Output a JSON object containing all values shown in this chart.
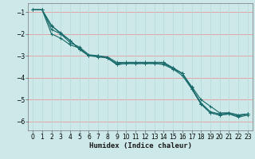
{
  "xlabel": "Humidex (Indice chaleur)",
  "ylabel": "",
  "background_color": "#cce8e8",
  "grid_color_h": "#e89898",
  "grid_color_v": "#b8d8d8",
  "line_color": "#1a6b6b",
  "x_values": [
    0,
    1,
    2,
    3,
    4,
    5,
    6,
    7,
    8,
    9,
    10,
    11,
    12,
    13,
    14,
    15,
    16,
    17,
    18,
    19,
    20,
    21,
    22,
    23
  ],
  "series": [
    [
      -0.9,
      -0.9,
      -1.6,
      -2.0,
      -2.3,
      -2.7,
      -3.0,
      -3.0,
      -3.1,
      -3.4,
      -3.35,
      -3.35,
      -3.35,
      -3.35,
      -3.35,
      -3.6,
      -3.8,
      -4.5,
      -5.2,
      -5.6,
      -5.7,
      -5.65,
      -5.8,
      -5.7
    ],
    [
      -0.9,
      -0.9,
      -1.8,
      -2.0,
      -2.4,
      -2.6,
      -2.95,
      -3.0,
      -3.05,
      -3.3,
      -3.3,
      -3.3,
      -3.3,
      -3.3,
      -3.3,
      -3.55,
      -3.8,
      -4.4,
      -5.0,
      -5.3,
      -5.6,
      -5.6,
      -5.7,
      -5.65
    ],
    [
      -0.9,
      -0.9,
      -2.0,
      -2.2,
      -2.5,
      -2.65,
      -3.0,
      -3.05,
      -3.1,
      -3.4,
      -3.35,
      -3.35,
      -3.35,
      -3.35,
      -3.4,
      -3.6,
      -3.9,
      -4.5,
      -5.2,
      -5.6,
      -5.7,
      -5.65,
      -5.75,
      -5.65
    ],
    [
      -0.9,
      -0.9,
      -1.65,
      -1.95,
      -2.3,
      -2.7,
      -3.0,
      -3.0,
      -3.1,
      -3.35,
      -3.3,
      -3.3,
      -3.3,
      -3.3,
      -3.3,
      -3.55,
      -3.8,
      -4.45,
      -5.15,
      -5.55,
      -5.65,
      -5.6,
      -5.7,
      -5.65
    ]
  ],
  "xlim": [
    -0.5,
    23.5
  ],
  "ylim": [
    -6.4,
    -0.6
  ],
  "yticks": [
    -6,
    -5,
    -4,
    -3,
    -2,
    -1
  ],
  "xticks": [
    0,
    1,
    2,
    3,
    4,
    5,
    6,
    7,
    8,
    9,
    10,
    11,
    12,
    13,
    14,
    15,
    16,
    17,
    18,
    19,
    20,
    21,
    22,
    23
  ],
  "marker": "+",
  "markersize": 3,
  "linewidth": 0.8,
  "xlabel_fontsize": 6.5,
  "tick_fontsize": 5.5
}
